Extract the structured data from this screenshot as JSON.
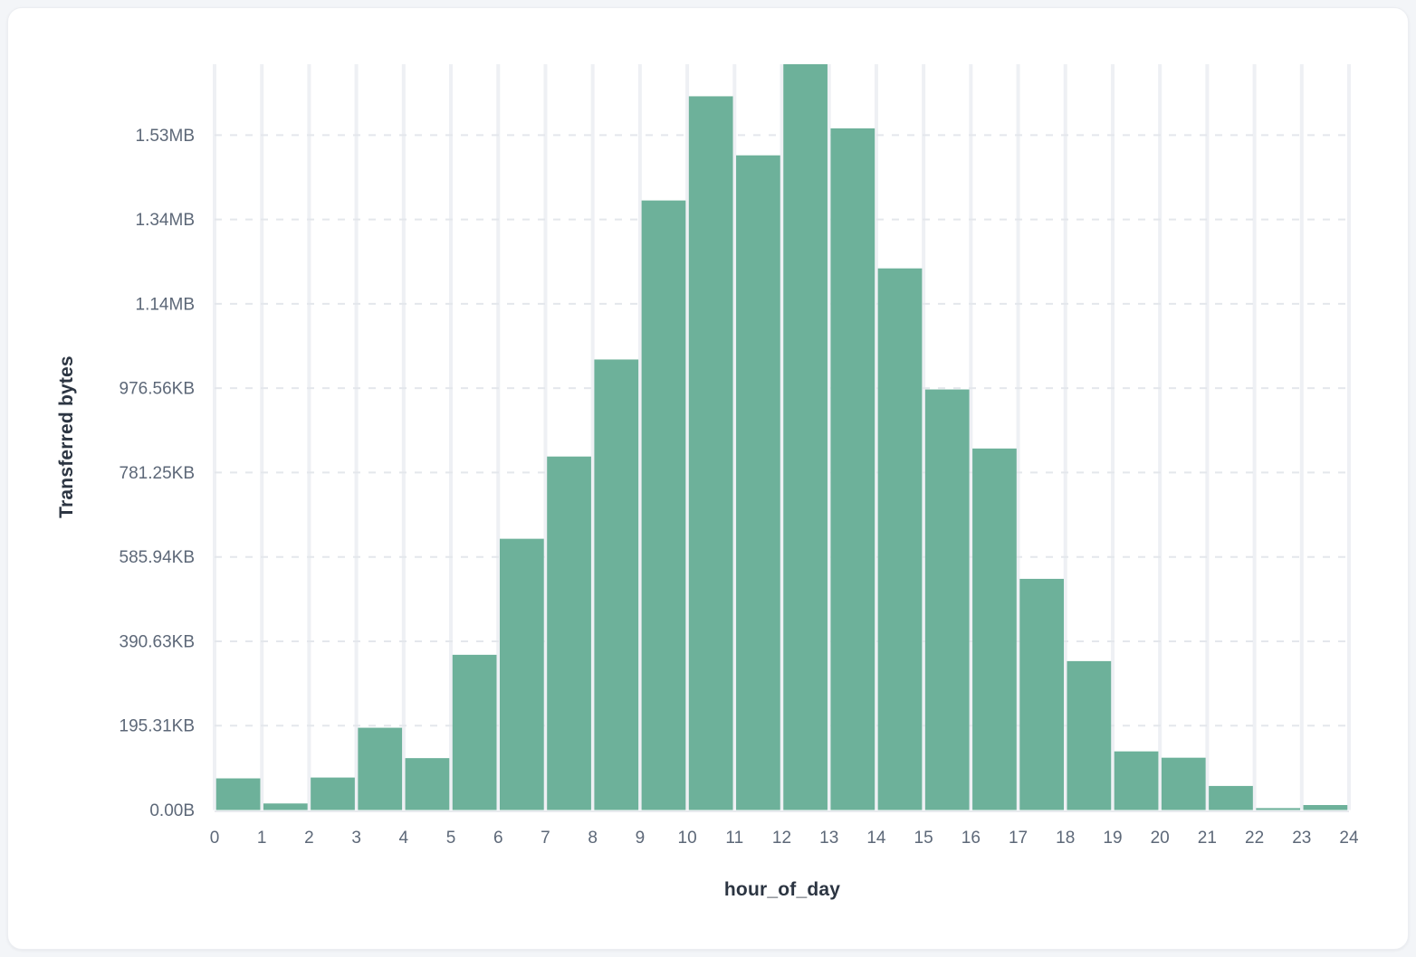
{
  "page": {
    "background_color": "#f3f5f8"
  },
  "card": {
    "background_color": "#ffffff"
  },
  "chart_data": {
    "type": "bar",
    "title": "",
    "xlabel": "hour_of_day",
    "ylabel": "Transferred bytes",
    "x_ticks": [
      "0",
      "1",
      "2",
      "3",
      "4",
      "5",
      "6",
      "7",
      "8",
      "9",
      "10",
      "11",
      "12",
      "13",
      "14",
      "15",
      "16",
      "17",
      "18",
      "19",
      "20",
      "21",
      "22",
      "23",
      "24"
    ],
    "y_ticks": [
      {
        "label": "0.00B",
        "bytes": 0
      },
      {
        "label": "195.31KB",
        "bytes": 200000
      },
      {
        "label": "390.63KB",
        "bytes": 400000
      },
      {
        "label": "585.94KB",
        "bytes": 600000
      },
      {
        "label": "781.25KB",
        "bytes": 800000
      },
      {
        "label": "976.56KB",
        "bytes": 1000000
      },
      {
        "label": "1.14MB",
        "bytes": 1200000
      },
      {
        "label": "1.34MB",
        "bytes": 1400000
      },
      {
        "label": "1.53MB",
        "bytes": 1600000
      }
    ],
    "bins_hour_start": [
      0,
      1,
      2,
      3,
      4,
      5,
      6,
      7,
      8,
      9,
      10,
      11,
      12,
      13,
      14,
      15,
      16,
      17,
      18,
      19,
      20,
      21,
      22,
      23
    ],
    "values_bytes": [
      75000,
      15500,
      77000,
      195000,
      123000,
      368000,
      643000,
      838000,
      1068000,
      1445000,
      1692000,
      1552000,
      1768000,
      1616000,
      1284000,
      997000,
      857000,
      548000,
      353000,
      139000,
      124000,
      57000,
      4500,
      11800
    ],
    "xlim": [
      0,
      24
    ],
    "ylim": [
      0,
      1768000
    ],
    "grid": {
      "vertical": "solid",
      "horizontal": "dashed"
    },
    "legend": "none",
    "colors": {
      "bar": "#6db19a",
      "grid_vertical": "#eef0f4",
      "grid_horizontal": "#e4e7ec",
      "axis_baseline": "#e8eaee",
      "tick_text": "#5d6878",
      "axis_title_text": "#2c3542"
    }
  }
}
